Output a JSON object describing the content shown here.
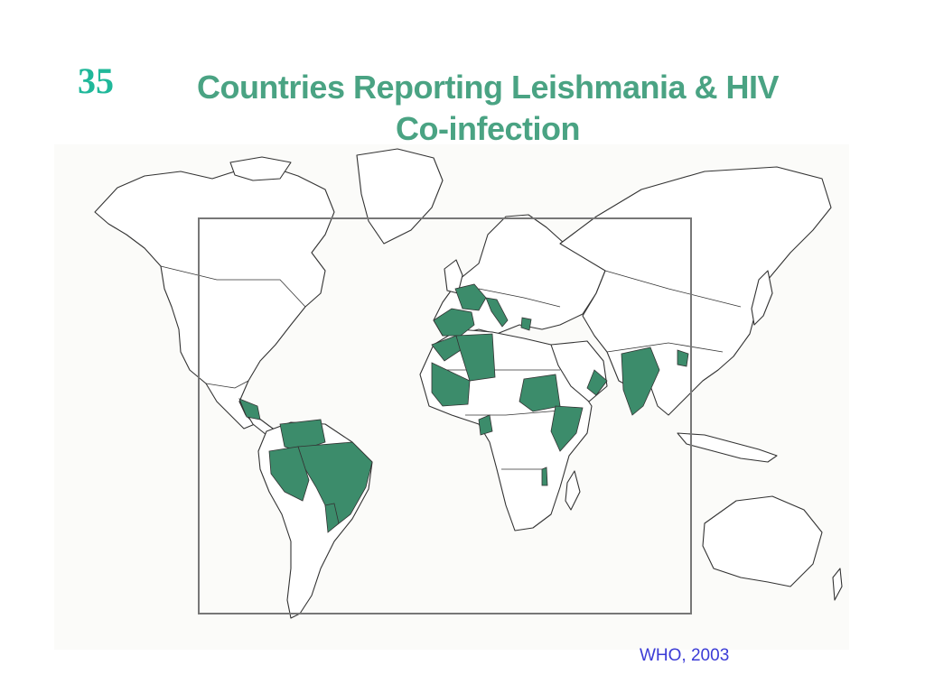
{
  "slide": {
    "number": "35"
  },
  "title": {
    "line1": "Countries Reporting Leishmania & HIV",
    "line2": "Co-infection"
  },
  "map": {
    "subject": "world map",
    "land_fill": "#ffffff",
    "outline_color": "#333333",
    "highlight_color": "#3c8c6b",
    "frame_color": "#777777",
    "highlighted_regions": [
      "spain",
      "portugal",
      "france",
      "italy",
      "greece",
      "morocco",
      "algeria",
      "mauritania",
      "mali",
      "cameroon",
      "sudan",
      "ethiopia",
      "kenya",
      "malawi",
      "oman",
      "india",
      "bangladesh",
      "mexico",
      "colombia",
      "venezuela",
      "peru",
      "bolivia",
      "brazil",
      "paraguay"
    ]
  },
  "source": {
    "label": "WHO, 2003"
  }
}
